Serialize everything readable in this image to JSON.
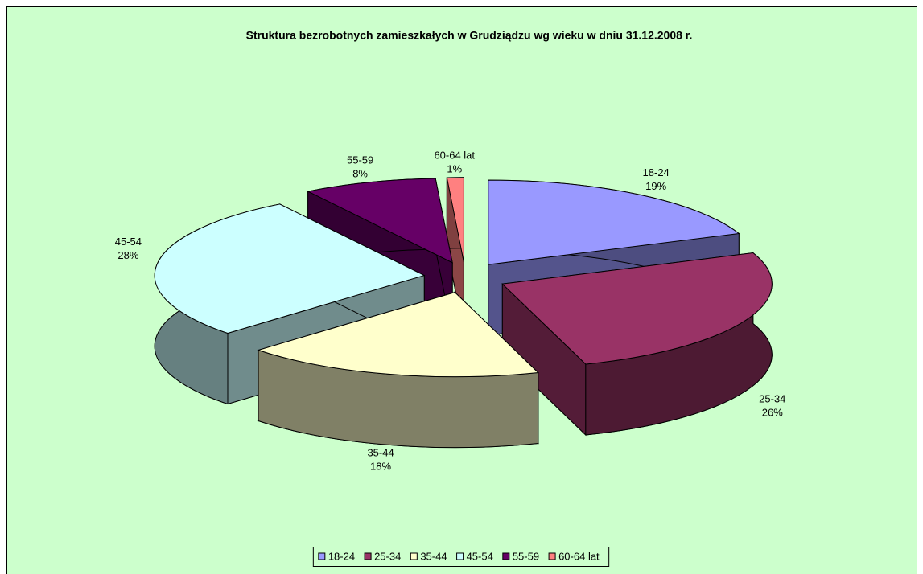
{
  "chart_data": {
    "type": "pie3d",
    "title": "Struktura bezrobotnych zamieszkałych w Grudziądzu wg wieku w dniu 31.12.2008 r.",
    "categories": [
      "18-24",
      "25-34",
      "35-44",
      "45-54",
      "55-59",
      "60-64 lat"
    ],
    "values": [
      19,
      26,
      18,
      28,
      8,
      1
    ],
    "value_labels": [
      "19%",
      "26%",
      "18%",
      "28%",
      "8%",
      "1%"
    ],
    "colors": [
      "#9999ff",
      "#993366",
      "#ffffcc",
      "#ccffff",
      "#660066",
      "#ff8080"
    ],
    "background": "#ccffcc",
    "legend": "bottom"
  }
}
